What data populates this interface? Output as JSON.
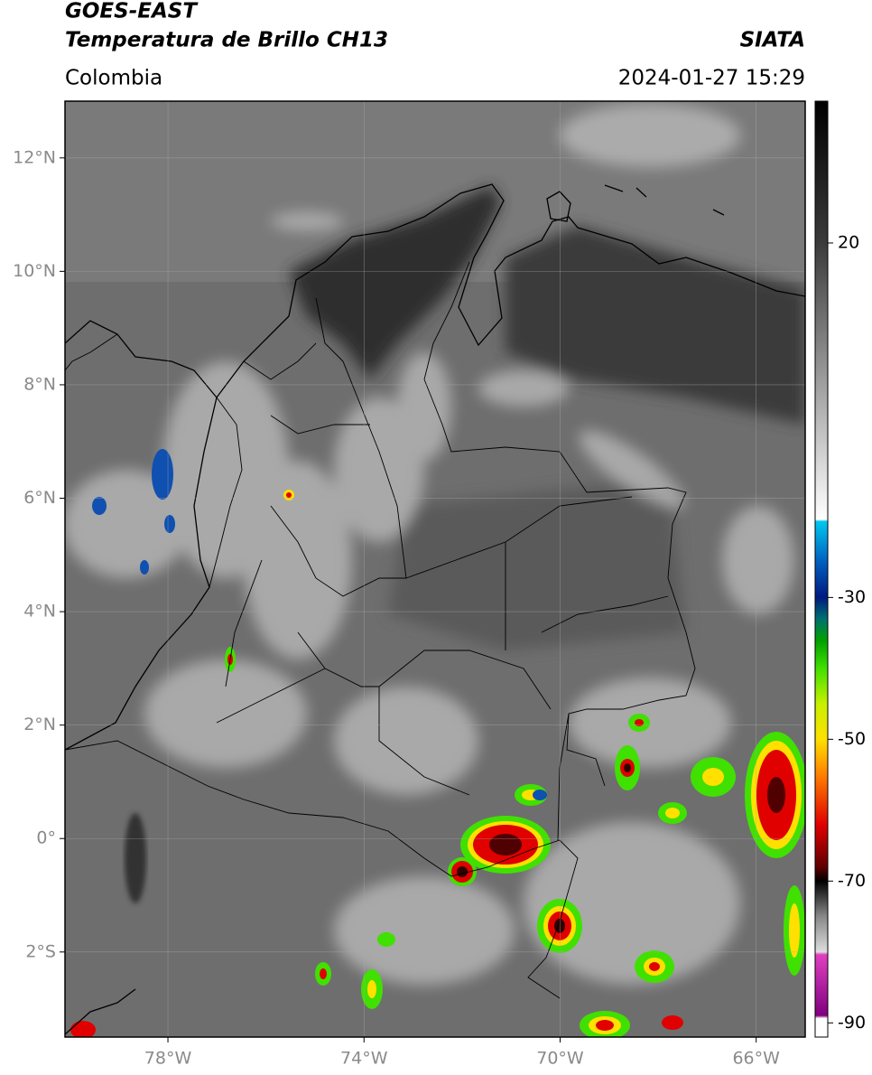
{
  "header": {
    "title": "GOES-EAST",
    "subtitle": "Temperatura de Brillo CH13",
    "source": "SIATA",
    "region": "Colombia",
    "datetime": "2024-01-27 15:29"
  },
  "map": {
    "xlim": [
      -80.1,
      -65
    ],
    "ylim": [
      -3.5,
      13
    ],
    "xticks": [
      {
        "value": -78,
        "label": "78°W"
      },
      {
        "value": -74,
        "label": "74°W"
      },
      {
        "value": -70,
        "label": "70°W"
      },
      {
        "value": -66,
        "label": "66°W"
      }
    ],
    "yticks": [
      {
        "value": 12,
        "label": "12°N"
      },
      {
        "value": 10,
        "label": "10°N"
      },
      {
        "value": 8,
        "label": "8°N"
      },
      {
        "value": 6,
        "label": "6°N"
      },
      {
        "value": 4,
        "label": "4°N"
      },
      {
        "value": 2,
        "label": "2°N"
      },
      {
        "value": 0,
        "label": "0°"
      },
      {
        "value": -2,
        "label": "2°S"
      }
    ],
    "grid": true
  },
  "colorbar": {
    "lim": [
      -92,
      40
    ],
    "ticks": [
      20,
      -30,
      -50,
      -70,
      -90
    ]
  }
}
